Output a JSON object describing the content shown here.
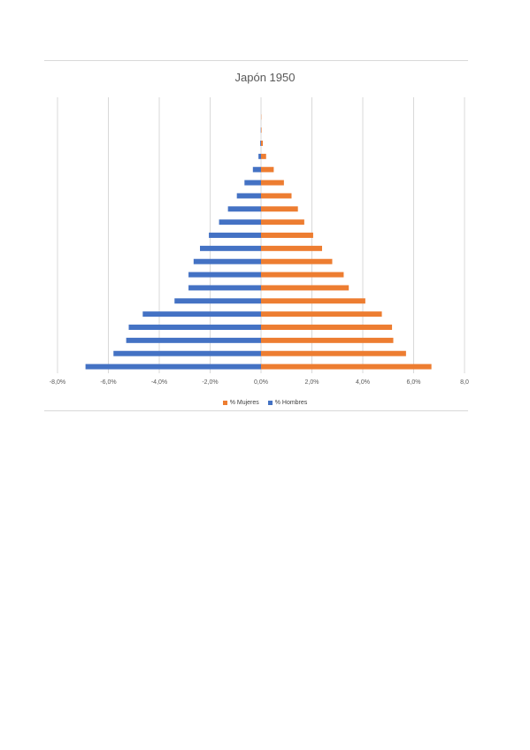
{
  "chart_data": {
    "type": "bar",
    "orientation": "horizontal",
    "title": "Japón 1950",
    "categories": [
      "",
      "",
      "",
      "",
      "",
      "",
      "",
      "",
      "",
      "",
      "",
      "",
      "",
      "",
      "",
      "",
      "",
      "",
      "",
      "",
      ""
    ],
    "series": [
      {
        "name": "% Mujeres",
        "color": "#ED7D31",
        "values": [
          6.7,
          5.7,
          5.2,
          5.15,
          4.75,
          4.1,
          3.45,
          3.25,
          2.8,
          2.4,
          2.05,
          1.7,
          1.45,
          1.2,
          0.9,
          0.5,
          0.2,
          0.07,
          0.02,
          0.01,
          0.0
        ]
      },
      {
        "name": "% Hombres",
        "color": "#4472C4",
        "values": [
          -6.9,
          -5.8,
          -5.3,
          -5.2,
          -4.65,
          -3.4,
          -2.85,
          -2.85,
          -2.65,
          -2.4,
          -2.05,
          -1.65,
          -1.3,
          -0.95,
          -0.65,
          -0.32,
          -0.1,
          -0.03,
          -0.01,
          0.0,
          0.0
        ]
      }
    ],
    "xlim": [
      -8,
      8
    ],
    "xticks": [
      "-8,0%",
      "-6,0%",
      "-4,0%",
      "-2,0%",
      "0,0%",
      "2,0%",
      "4,0%",
      "6,0%",
      "8,0"
    ],
    "grid": true,
    "legend": "bottom"
  }
}
